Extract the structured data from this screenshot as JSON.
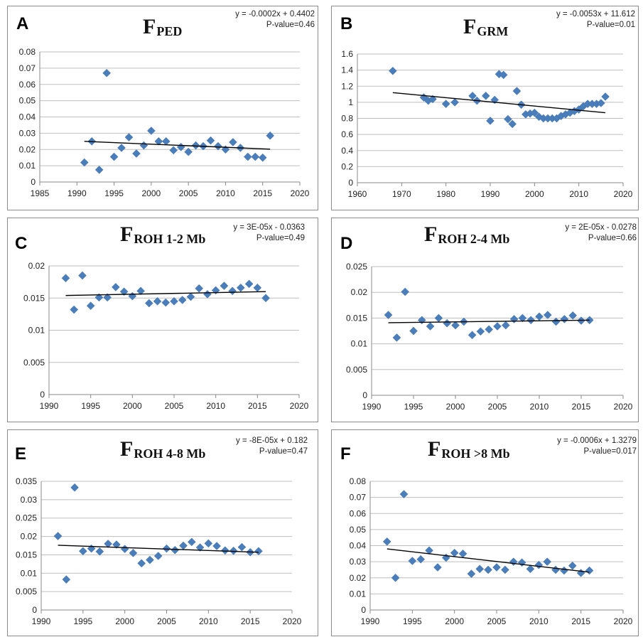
{
  "figure": {
    "colors": {
      "marker": "#4a7ebb",
      "trend": "#000000",
      "grid": "#bfbfbf",
      "axis": "#888888",
      "border": "#8c8c8c"
    }
  },
  "chart_data": [
    {
      "panel": "A",
      "type": "scatter",
      "title_main": "F",
      "title_sub": "PED",
      "equation": "y = -0.0002x + 0.4402",
      "pvalue": "P-value=0.46",
      "xlim": [
        1985,
        2020
      ],
      "xticks": [
        1985,
        1990,
        1995,
        2000,
        2005,
        2010,
        2015,
        2020
      ],
      "ylim": [
        0,
        0.08
      ],
      "yticks": [
        "0",
        "0.01",
        "0.02",
        "0.03",
        "0.04",
        "0.05",
        "0.06",
        "0.07",
        "0.08"
      ],
      "grid": true,
      "x": [
        1991,
        1992,
        1993,
        1994,
        1995,
        1996,
        1997,
        1998,
        1999,
        2000,
        2001,
        2002,
        2003,
        2004,
        2005,
        2006,
        2007,
        2008,
        2009,
        2010,
        2011,
        2012,
        2013,
        2014,
        2015,
        2016
      ],
      "y": [
        0.012,
        0.025,
        0.0075,
        0.067,
        0.0155,
        0.021,
        0.0275,
        0.0175,
        0.0225,
        0.0315,
        0.025,
        0.025,
        0.0195,
        0.0215,
        0.0185,
        0.0225,
        0.022,
        0.0255,
        0.022,
        0.02,
        0.0245,
        0.021,
        0.0155,
        0.0155,
        0.015,
        0.0285
      ],
      "trend": {
        "x": [
          1991,
          2016
        ],
        "y": [
          0.025,
          0.0202
        ]
      }
    },
    {
      "panel": "B",
      "type": "scatter",
      "title_main": "F",
      "title_sub": "GRM",
      "equation": "y = -0.0053x + 11.612",
      "pvalue": "P-value=0.01",
      "xlim": [
        1960,
        2020
      ],
      "xticks": [
        1960,
        1970,
        1980,
        1990,
        2000,
        2010,
        2020
      ],
      "ylim": [
        0,
        1.6
      ],
      "yticks": [
        "0",
        "0.2",
        "0.4",
        "0.6",
        "0.8",
        "1",
        "1.2",
        "1.4",
        "1.6"
      ],
      "grid": true,
      "x": [
        1968,
        1975,
        1976,
        1977,
        1980,
        1982,
        1986,
        1987,
        1989,
        1990,
        1991,
        1992,
        1993,
        1994,
        1995,
        1996,
        1997,
        1998,
        1999,
        2000,
        2001,
        2002,
        2003,
        2004,
        2005,
        2006,
        2007,
        2008,
        2009,
        2010,
        2011,
        2012,
        2013,
        2014,
        2015,
        2016
      ],
      "y": [
        1.39,
        1.06,
        1.02,
        1.04,
        0.98,
        1.0,
        1.08,
        1.02,
        1.08,
        0.77,
        1.03,
        1.35,
        1.34,
        0.79,
        0.73,
        1.14,
        0.97,
        0.85,
        0.86,
        0.87,
        0.82,
        0.8,
        0.8,
        0.8,
        0.8,
        0.83,
        0.85,
        0.87,
        0.89,
        0.91,
        0.95,
        0.98,
        0.98,
        0.98,
        0.99,
        1.07
      ],
      "trend": {
        "x": [
          1968,
          2016
        ],
        "y": [
          1.12,
          0.87
        ]
      }
    },
    {
      "panel": "C",
      "type": "scatter",
      "title_main": "F",
      "title_sub": "ROH 1-2 Mb",
      "equation": "y = 3E-05x - 0.0363",
      "pvalue": "P-value=0.49",
      "xlim": [
        1990,
        2020
      ],
      "xticks": [
        1990,
        1995,
        2000,
        2005,
        2010,
        2015,
        2020
      ],
      "ylim": [
        0,
        0.02
      ],
      "yticks": [
        "0",
        "0.005",
        "0.01",
        "0.015",
        "0.02"
      ],
      "grid": true,
      "x": [
        1992,
        1993,
        1994,
        1995,
        1996,
        1997,
        1998,
        1999,
        2000,
        2001,
        2002,
        2003,
        2004,
        2005,
        2006,
        2007,
        2008,
        2009,
        2010,
        2011,
        2012,
        2013,
        2014,
        2015,
        2016
      ],
      "y": [
        0.0181,
        0.0132,
        0.0185,
        0.0138,
        0.0151,
        0.0151,
        0.0167,
        0.016,
        0.0153,
        0.0161,
        0.0142,
        0.0145,
        0.0143,
        0.0145,
        0.0147,
        0.0152,
        0.0165,
        0.0156,
        0.0162,
        0.0169,
        0.0161,
        0.0166,
        0.0172,
        0.0166,
        0.015
      ],
      "trend": {
        "x": [
          1992,
          2016
        ],
        "y": [
          0.0154,
          0.016
        ]
      }
    },
    {
      "panel": "D",
      "type": "scatter",
      "title_main": "F",
      "title_sub": "ROH 2-4 Mb",
      "equation": "y = 2E-05x - 0.0278",
      "pvalue": "P-value=0.66",
      "xlim": [
        1990,
        2020
      ],
      "xticks": [
        1990,
        1995,
        2000,
        2005,
        2010,
        2015,
        2020
      ],
      "ylim": [
        0,
        0.025
      ],
      "yticks": [
        "0",
        "0.005",
        "0.01",
        "0.015",
        "0.02",
        "0.025"
      ],
      "grid": true,
      "x": [
        1992,
        1993,
        1994,
        1995,
        1996,
        1997,
        1998,
        1999,
        2000,
        2001,
        2002,
        2003,
        2004,
        2005,
        2006,
        2007,
        2008,
        2009,
        2010,
        2011,
        2012,
        2013,
        2014,
        2015,
        2016
      ],
      "y": [
        0.0156,
        0.0112,
        0.0201,
        0.0125,
        0.0146,
        0.0134,
        0.015,
        0.014,
        0.0136,
        0.0143,
        0.0117,
        0.0124,
        0.0128,
        0.0134,
        0.0136,
        0.0148,
        0.015,
        0.0146,
        0.0153,
        0.0156,
        0.0143,
        0.0148,
        0.0155,
        0.0145,
        0.0146
      ],
      "trend": {
        "x": [
          1992,
          2016
        ],
        "y": [
          0.0141,
          0.0146
        ]
      }
    },
    {
      "panel": "E",
      "type": "scatter",
      "title_main": "F",
      "title_sub": "ROH 4-8 Mb",
      "equation": "y = -8E-05x + 0.182",
      "pvalue": "P-value=0.47",
      "xlim": [
        1990,
        2020
      ],
      "xticks": [
        1990,
        1995,
        2000,
        2005,
        2010,
        2015,
        2020
      ],
      "ylim": [
        0,
        0.035
      ],
      "yticks": [
        "0",
        "0.005",
        "0.01",
        "0.015",
        "0.02",
        "0.025",
        "0.03",
        "0.035"
      ],
      "grid": true,
      "x": [
        1992,
        1993,
        1994,
        1995,
        1996,
        1997,
        1998,
        1999,
        2000,
        2001,
        2002,
        2003,
        2004,
        2005,
        2006,
        2007,
        2008,
        2009,
        2010,
        2011,
        2012,
        2013,
        2014,
        2015,
        2016
      ],
      "y": [
        0.0201,
        0.0083,
        0.0333,
        0.016,
        0.0167,
        0.0159,
        0.018,
        0.0178,
        0.0166,
        0.0155,
        0.0127,
        0.0136,
        0.0147,
        0.0167,
        0.0163,
        0.0175,
        0.0185,
        0.017,
        0.0181,
        0.0174,
        0.0162,
        0.0161,
        0.0171,
        0.0157,
        0.016
      ],
      "trend": {
        "x": [
          1992,
          2016
        ],
        "y": [
          0.0176,
          0.0157
        ]
      }
    },
    {
      "panel": "F",
      "type": "scatter",
      "title_main": "F",
      "title_sub": "ROH >8 Mb",
      "equation": "y = -0.0006x + 1.3279",
      "pvalue": "P-value=0.017",
      "xlim": [
        1990,
        2020
      ],
      "xticks": [
        1990,
        1995,
        2000,
        2005,
        2010,
        2015,
        2020
      ],
      "ylim": [
        0,
        0.08
      ],
      "yticks": [
        "0",
        "0.01",
        "0.02",
        "0.03",
        "0.04",
        "0.05",
        "0.06",
        "0.07",
        "0.08"
      ],
      "grid": true,
      "x": [
        1992,
        1993,
        1994,
        1995,
        1996,
        1997,
        1998,
        1999,
        2000,
        2001,
        2002,
        2003,
        2004,
        2005,
        2006,
        2007,
        2008,
        2009,
        2010,
        2011,
        2012,
        2013,
        2014,
        2015,
        2016
      ],
      "y": [
        0.0425,
        0.02,
        0.072,
        0.0305,
        0.0315,
        0.037,
        0.0265,
        0.0325,
        0.0355,
        0.035,
        0.0225,
        0.0255,
        0.025,
        0.0265,
        0.025,
        0.03,
        0.0295,
        0.0255,
        0.028,
        0.03,
        0.025,
        0.0245,
        0.0275,
        0.023,
        0.0245
      ],
      "trend": {
        "x": [
          1992,
          2016
        ],
        "y": [
          0.038,
          0.0235
        ]
      }
    }
  ]
}
